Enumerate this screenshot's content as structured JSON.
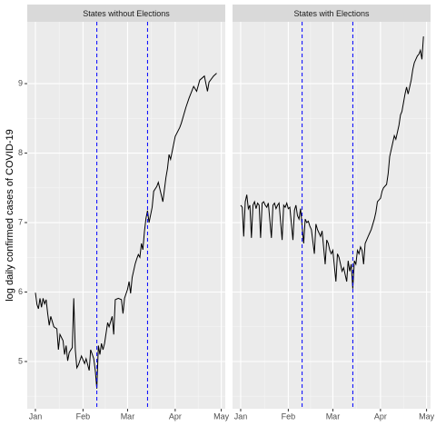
{
  "chart_data": [
    {
      "type": "line",
      "title": "States without Elections",
      "ylabel": "log daily confirmed cases of COVID-19",
      "color": "#000000",
      "vline_color": "#0000ff",
      "x": [
        0,
        1,
        2,
        3,
        4,
        5,
        6,
        7,
        8,
        9,
        10,
        12,
        14,
        15,
        16,
        18,
        19,
        20,
        21,
        22,
        24,
        25,
        26,
        27,
        28,
        30,
        32,
        33,
        35,
        36,
        38,
        39,
        40,
        41,
        42,
        43,
        44,
        45,
        47,
        48,
        50,
        51,
        52,
        54,
        56,
        57,
        58,
        60,
        61,
        62,
        63,
        65,
        66,
        67,
        68,
        69,
        70,
        71,
        72,
        73,
        74,
        76,
        77,
        79,
        80,
        83,
        85,
        86,
        87,
        88,
        91,
        94,
        95,
        98,
        100,
        103,
        105,
        107,
        110,
        112,
        113,
        116,
        118
      ],
      "values": [
        5.99,
        5.82,
        5.76,
        5.91,
        5.78,
        5.91,
        5.83,
        5.89,
        5.69,
        5.52,
        5.65,
        5.5,
        5.47,
        5.17,
        5.39,
        5.3,
        5.1,
        5.23,
        5.01,
        5.13,
        5.2,
        5.91,
        5.17,
        4.91,
        4.95,
        5.08,
        4.97,
        5.04,
        4.87,
        5.17,
        5.04,
        4.87,
        4.61,
        5.23,
        5.1,
        5.26,
        5.17,
        5.26,
        5.56,
        5.5,
        5.65,
        5.39,
        5.89,
        5.91,
        5.89,
        5.69,
        5.91,
        6.04,
        6.15,
        5.98,
        6.21,
        6.41,
        6.48,
        6.54,
        6.5,
        6.7,
        6.61,
        6.87,
        7.06,
        7.17,
        7.0,
        7.22,
        7.45,
        7.52,
        7.58,
        7.3,
        7.65,
        7.78,
        7.98,
        7.91,
        8.24,
        8.37,
        8.43,
        8.66,
        8.79,
        8.96,
        8.89,
        9.05,
        9.11,
        8.89,
        9.02,
        9.11,
        9.15
      ],
      "vlines": [
        40,
        73
      ],
      "xlim": [
        -5.3,
        123.6
      ],
      "ylim": [
        4.32,
        9.89
      ],
      "xticks": [
        {
          "value": 0,
          "label": "Jan"
        },
        {
          "value": 31,
          "label": "Feb"
        },
        {
          "value": 60,
          "label": "Mar"
        },
        {
          "value": 91,
          "label": "Apr"
        },
        {
          "value": 121,
          "label": "May"
        }
      ],
      "yticks": [
        5,
        6,
        7,
        8,
        9
      ],
      "grid": true
    },
    {
      "type": "line",
      "title": "States with Elections",
      "color": "#000000",
      "vline_color": "#0000ff",
      "x": [
        0,
        1,
        2,
        3,
        4,
        5,
        6,
        7,
        8,
        9,
        10,
        11,
        12,
        13,
        14,
        15,
        16,
        17,
        18,
        20,
        21,
        22,
        23,
        24,
        25,
        27,
        28,
        29,
        30,
        31,
        32,
        34,
        35,
        36,
        37,
        38,
        39,
        41,
        42,
        43,
        44,
        45,
        46,
        48,
        49,
        50,
        51,
        52,
        53,
        55,
        56,
        57,
        58,
        59,
        60,
        62,
        63,
        64,
        65,
        66,
        67,
        69,
        70,
        71,
        72,
        73,
        74,
        75,
        76,
        77,
        78,
        79,
        80,
        81,
        83,
        84,
        85,
        87,
        88,
        89,
        91,
        92,
        93,
        95,
        96,
        97,
        99,
        100,
        101,
        103,
        104,
        105,
        107,
        108,
        109,
        111,
        112,
        113,
        115,
        116,
        117,
        118,
        119
      ],
      "values": [
        7.25,
        7.22,
        6.8,
        7.3,
        7.4,
        7.2,
        7.25,
        6.78,
        7.25,
        7.3,
        7.2,
        7.28,
        7.25,
        6.78,
        7.28,
        7.3,
        7.25,
        7.22,
        7.28,
        6.78,
        7.25,
        7.28,
        7.2,
        7.25,
        7.28,
        6.75,
        7.25,
        7.22,
        7.28,
        7.2,
        7.22,
        6.75,
        7.18,
        7.25,
        7.1,
        7.05,
        7.2,
        6.7,
        7.05,
        7.0,
        7.02,
        6.95,
        6.9,
        6.55,
        6.98,
        6.9,
        6.85,
        6.8,
        6.88,
        6.4,
        6.75,
        6.7,
        6.6,
        6.55,
        6.6,
        6.15,
        6.55,
        6.5,
        6.4,
        6.3,
        6.35,
        6.15,
        6.45,
        6.3,
        6.4,
        6.05,
        6.45,
        6.4,
        6.6,
        6.55,
        6.65,
        6.6,
        6.4,
        6.7,
        6.8,
        6.85,
        6.9,
        7.05,
        7.15,
        7.3,
        7.35,
        7.45,
        7.5,
        7.55,
        7.7,
        7.95,
        8.15,
        8.25,
        8.2,
        8.4,
        8.55,
        8.6,
        8.85,
        8.95,
        8.85,
        9.05,
        9.2,
        9.3,
        9.4,
        9.42,
        9.48,
        9.35,
        9.68
      ],
      "vlines": [
        40,
        73
      ],
      "xlim": [
        -5.3,
        123.6
      ],
      "ylim": [
        4.32,
        9.89
      ],
      "xticks": [
        {
          "value": 0,
          "label": "Jan"
        },
        {
          "value": 31,
          "label": "Feb"
        },
        {
          "value": 60,
          "label": "Mar"
        },
        {
          "value": 91,
          "label": "Apr"
        },
        {
          "value": 121,
          "label": "May"
        }
      ],
      "grid": true
    }
  ]
}
